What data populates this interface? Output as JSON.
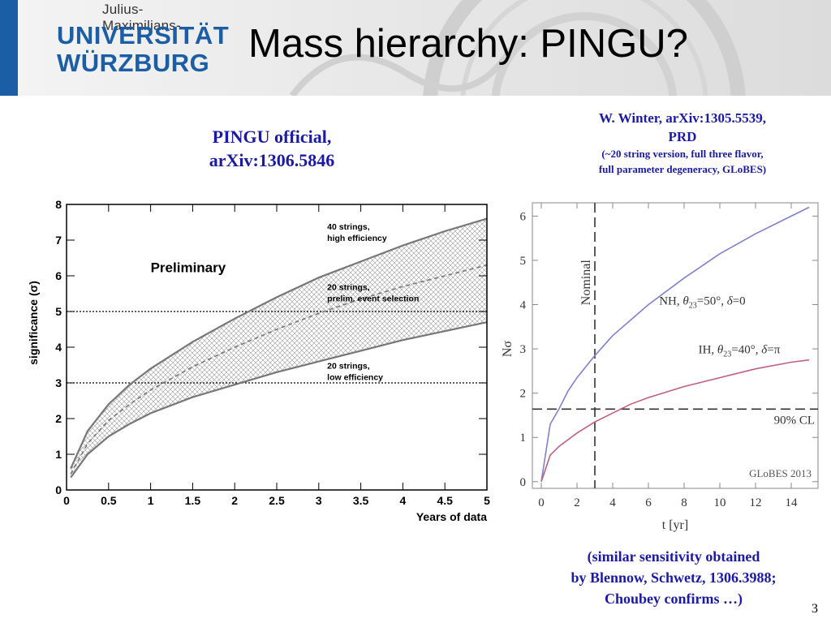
{
  "header": {
    "logo": {
      "top_line": "Julius-Maximilians-",
      "line1": "UNIVERSITÄT",
      "line2": "WÜRZBURG"
    },
    "title": "Mass hierarchy: PINGU?",
    "colors": {
      "logo_blue": "#1c5ea6"
    }
  },
  "left_caption": {
    "line1": "PINGU official,",
    "line2": "arXiv:1306.5846"
  },
  "right_caption": {
    "line1": "W. Winter, arXiv:1305.5539,",
    "line2": "PRD",
    "line3": "(~20 string version, full three flavor,",
    "line4": "full parameter degeneracy, GLoBES)"
  },
  "bottom_caption": {
    "line1": "(similar sensitivity obtained",
    "line2": "by Blennow, Schwetz, 1306.3988;",
    "line3": "Choubey confirms …)"
  },
  "page_number": "3",
  "chart_data": [
    {
      "type": "line",
      "xlabel": "Years of data",
      "ylabel": "significance (σ)",
      "xlim": [
        0,
        5
      ],
      "ylim": [
        0,
        8
      ],
      "x_ticks": [
        "0",
        "0.5",
        "1",
        "1.5",
        "2",
        "2.5",
        "3",
        "3.5",
        "4",
        "4.5",
        "5"
      ],
      "y_ticks": [
        "0",
        "1",
        "2",
        "3",
        "4",
        "5",
        "6",
        "7",
        "8"
      ],
      "annotation": "Preliminary",
      "reference_lines": [
        3,
        5
      ],
      "band_between": [
        "40 strings, high efficiency",
        "20 strings, low efficiency"
      ],
      "series": [
        {
          "name": "40 strings, high efficiency",
          "label_lines": [
            "40 strings,",
            "high efficiency"
          ],
          "style": "solid",
          "x": [
            0.05,
            0.25,
            0.5,
            0.75,
            1,
            1.5,
            2,
            2.5,
            3,
            3.5,
            4,
            4.5,
            5
          ],
          "y": [
            0.6,
            1.65,
            2.4,
            2.95,
            3.4,
            4.15,
            4.8,
            5.4,
            5.95,
            6.4,
            6.85,
            7.25,
            7.6
          ]
        },
        {
          "name": "20 strings, prelim. event selection",
          "label_lines": [
            "20 strings,",
            "prelim. event selection"
          ],
          "style": "dashed",
          "x": [
            0.05,
            0.25,
            0.5,
            0.75,
            1,
            1.5,
            2,
            2.5,
            3,
            3.5,
            4,
            4.5,
            5
          ],
          "y": [
            0.45,
            1.3,
            1.95,
            2.4,
            2.8,
            3.45,
            4.0,
            4.5,
            4.95,
            5.35,
            5.7,
            6.0,
            6.3
          ]
        },
        {
          "name": "20 strings, low efficiency",
          "label_lines": [
            "20 strings,",
            "low efficiency"
          ],
          "style": "solid",
          "x": [
            0.05,
            0.25,
            0.5,
            0.75,
            1,
            1.5,
            2,
            2.5,
            3,
            3.5,
            4,
            4.5,
            5
          ],
          "y": [
            0.35,
            1.0,
            1.5,
            1.85,
            2.15,
            2.6,
            2.95,
            3.3,
            3.6,
            3.9,
            4.2,
            4.45,
            4.7
          ]
        }
      ],
      "colors": {
        "curve": "#777777",
        "band": "#9a9a9a"
      }
    },
    {
      "type": "line",
      "xlabel": "t [yr]",
      "ylabel": "Nσ",
      "xlim": [
        -0.5,
        15.5
      ],
      "ylim": [
        -0.15,
        6.3
      ],
      "x_ticks": [
        "0",
        "2",
        "4",
        "6",
        "8",
        "10",
        "12",
        "14"
      ],
      "y_ticks": [
        "0",
        "1",
        "2",
        "3",
        "4",
        "5",
        "6"
      ],
      "vertical_line": {
        "x": 3,
        "label": "Nominal"
      },
      "horizontal_line": {
        "y": 1.64,
        "label": "90% CL"
      },
      "watermark": "GLoBES 2013",
      "series": [
        {
          "name": "NH, θ23=50°, δ=0",
          "label_parts": [
            "NH, ",
            "θ",
            "23",
            "=50°, ",
            "δ",
            "=0"
          ],
          "color": "#8080d0",
          "x": [
            0,
            0.5,
            1,
            1.5,
            2,
            3,
            4,
            5,
            6,
            8,
            10,
            12,
            14,
            15
          ],
          "y": [
            0,
            1.3,
            1.65,
            2.05,
            2.35,
            2.85,
            3.3,
            3.65,
            4.0,
            4.6,
            5.15,
            5.6,
            6.0,
            6.2
          ]
        },
        {
          "name": "IH, θ23=40°, δ=π",
          "label_parts": [
            "IH, ",
            "θ",
            "23",
            "=40°, ",
            "δ",
            "=π"
          ],
          "color": "#c06080",
          "x": [
            0,
            0.5,
            1,
            2,
            3,
            4,
            5,
            6,
            8,
            10,
            12,
            14,
            15
          ],
          "y": [
            0,
            0.6,
            0.8,
            1.1,
            1.35,
            1.55,
            1.75,
            1.9,
            2.15,
            2.35,
            2.55,
            2.7,
            2.75
          ]
        }
      ]
    }
  ]
}
